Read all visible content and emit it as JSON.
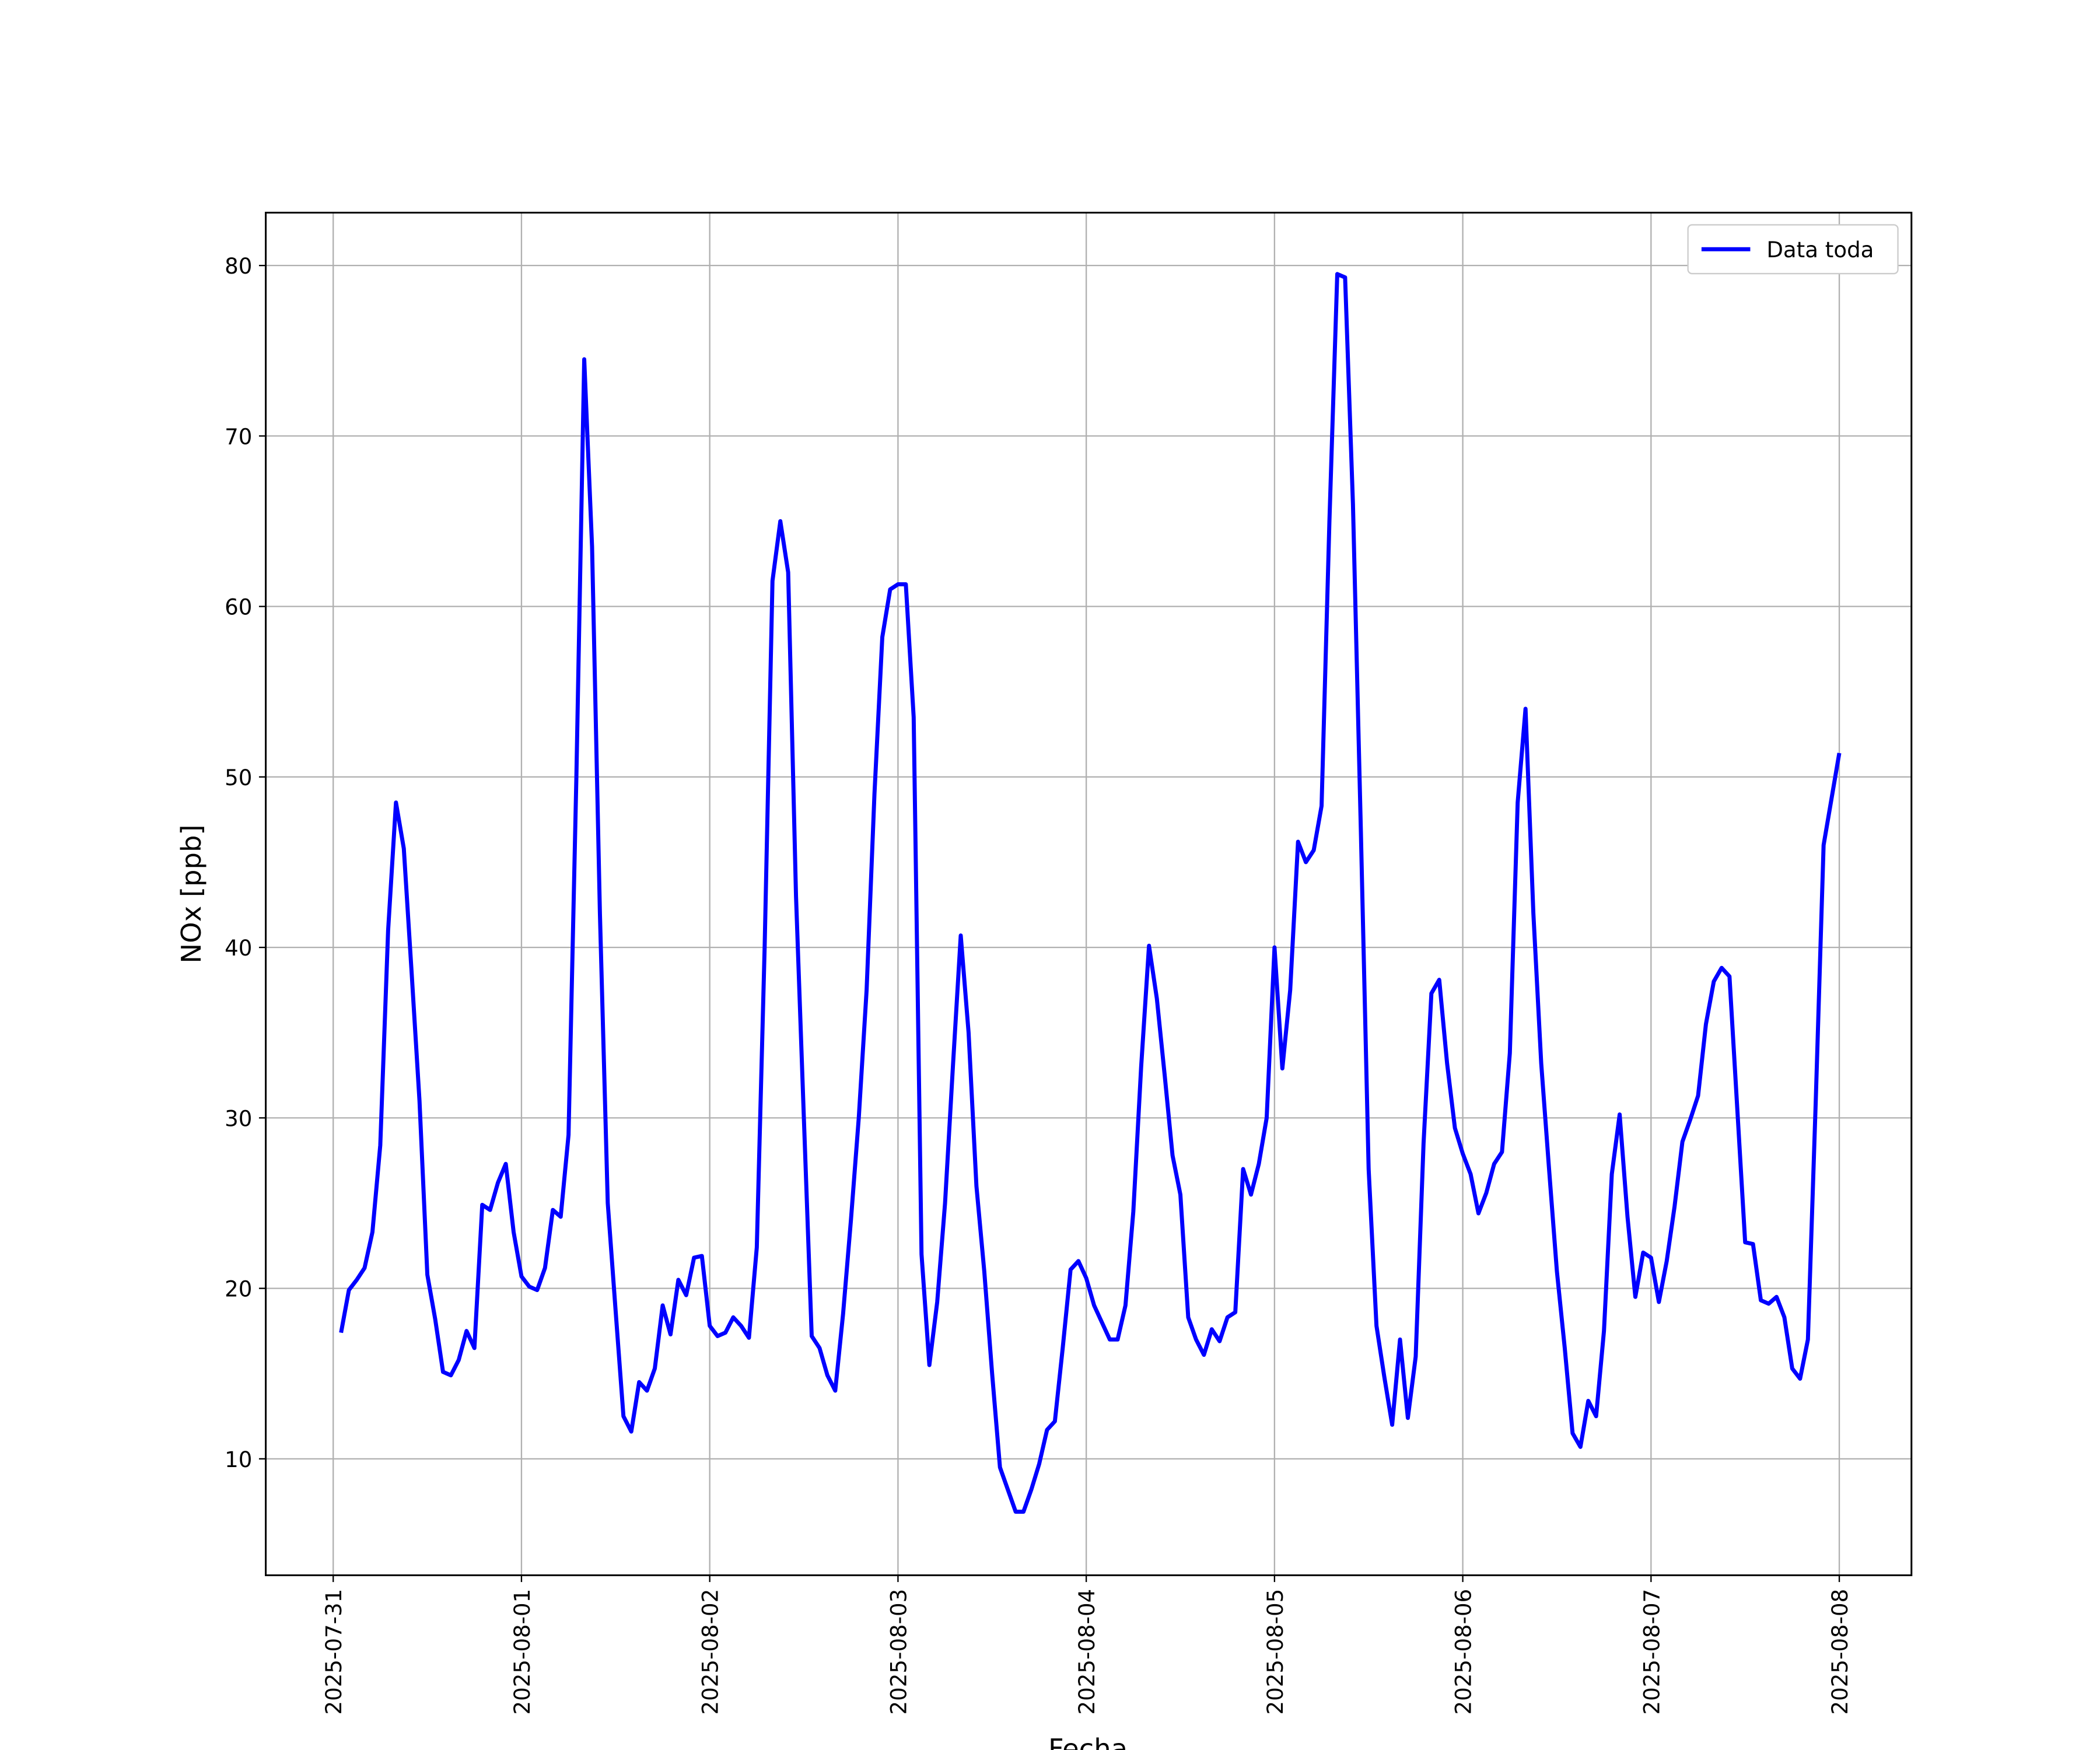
{
  "chart_data": {
    "type": "line",
    "xlabel": "Fecha",
    "ylabel": "NOx [ppb]",
    "x": [
      1,
      2,
      3,
      4,
      5,
      6,
      7,
      8,
      9,
      10,
      11,
      12,
      13,
      14,
      15,
      16,
      17,
      18,
      19,
      20,
      21,
      22,
      23,
      24,
      25,
      26,
      27,
      28,
      29,
      30,
      31,
      32,
      33,
      34,
      35,
      36,
      37,
      38,
      39,
      40,
      41,
      42,
      43,
      44,
      45,
      46,
      47,
      48,
      49,
      50,
      51,
      52,
      53,
      54,
      55,
      56,
      57,
      58,
      59,
      60,
      61,
      62,
      63,
      64,
      65,
      66,
      67,
      68,
      69,
      70,
      71,
      72,
      73,
      74,
      75,
      76,
      77,
      78,
      79,
      80,
      81,
      82,
      83,
      84,
      85,
      86,
      87,
      88,
      89,
      90,
      91,
      92,
      93,
      94,
      95,
      96,
      97,
      98,
      99,
      100,
      101,
      102,
      103,
      104,
      105,
      106,
      107,
      108,
      109,
      110,
      111,
      112,
      113,
      114,
      115,
      116,
      117,
      118,
      119,
      120,
      121,
      122,
      123,
      124,
      125,
      126,
      127,
      128,
      129,
      130,
      131,
      132,
      133,
      134,
      135,
      136,
      137,
      138,
      139,
      140,
      141,
      142,
      143,
      144,
      145,
      146,
      147,
      148,
      149,
      150,
      151,
      152,
      153,
      154,
      155,
      156,
      157,
      158,
      159,
      160,
      161,
      162,
      163,
      164,
      165,
      166,
      167,
      168,
      169,
      170,
      171,
      172,
      173,
      174,
      175,
      176,
      177,
      178,
      179,
      180,
      181,
      182,
      183,
      184,
      185,
      186,
      187,
      188,
      189,
      190,
      191,
      192
    ],
    "series": [
      {
        "name": "Data toda",
        "color": "#0000ff",
        "values": [
          17.4,
          19.9,
          20.5,
          21.2,
          23.3,
          28.4,
          41,
          48.5,
          45.8,
          38.5,
          31,
          20.8,
          18.2,
          15.1,
          14.9,
          15.8,
          17.5,
          16.5,
          24.9,
          24.6,
          26.2,
          27.3,
          23.3,
          20.7,
          20.1,
          19.9,
          21.2,
          24.6,
          24.2,
          29,
          50,
          74.5,
          63.5,
          42,
          25,
          18.7,
          12.5,
          11.6,
          14.5,
          14,
          15.3,
          19,
          17.3,
          20.5,
          19.6,
          21.8,
          21.9,
          17.8,
          17.2,
          17.4,
          18.3,
          17.8,
          17.1,
          22.4,
          40,
          61.5,
          65,
          62,
          43,
          30,
          17.2,
          16.5,
          14.9,
          14,
          18.5,
          24,
          30,
          37.5,
          49,
          58.2,
          61,
          61.3,
          61.3,
          53.5,
          22,
          15.5,
          19.2,
          25,
          33,
          40.7,
          35,
          26,
          21,
          15,
          9.5,
          8.2,
          6.9,
          6.9,
          8.2,
          9.7,
          11.7,
          12.2,
          16.5,
          21.1,
          21.6,
          20.6,
          19,
          18,
          17,
          17,
          19,
          24.5,
          33,
          40.1,
          37,
          32.5,
          27.8,
          25.5,
          18.3,
          17,
          16.1,
          17.6,
          16.9,
          18.3,
          18.6,
          27,
          25.5,
          27.3,
          30,
          40,
          32.9,
          37.5,
          46.2,
          45,
          45.7,
          48.3,
          65,
          79.5,
          79.3,
          66,
          47,
          27,
          17.8,
          14.8,
          12,
          17,
          12.4,
          16,
          28.5,
          37.3,
          38.1,
          33.2,
          29.4,
          27.9,
          26.7,
          24.4,
          25.6,
          27.3,
          28,
          33.8,
          48.5,
          54,
          42,
          33.2,
          27,
          21,
          16.5,
          11.5,
          10.7,
          13.4,
          12.5,
          17.5,
          26.7,
          30.2,
          24.2,
          19.5,
          22.1,
          21.8,
          19.2,
          21.6,
          24.8,
          28.6,
          29.9,
          31.3,
          35.5,
          38,
          38.8,
          38.3,
          30.5,
          22.7,
          22.6,
          19.3,
          19.1,
          19.5,
          18.3,
          15.3,
          14.7,
          17,
          31,
          46,
          48.7,
          51.4
        ]
      }
    ],
    "xlim": [
      -8.6,
      201.2
    ],
    "xticks": [
      {
        "value": 0,
        "label": "2025-07-31"
      },
      {
        "value": 24,
        "label": "2025-08-01"
      },
      {
        "value": 48,
        "label": "2025-08-02"
      },
      {
        "value": 72,
        "label": "2025-08-03"
      },
      {
        "value": 96,
        "label": "2025-08-04"
      },
      {
        "value": 120,
        "label": "2025-08-05"
      },
      {
        "value": 144,
        "label": "2025-08-06"
      },
      {
        "value": 168,
        "label": "2025-08-07"
      },
      {
        "value": 192,
        "label": "2025-08-08"
      }
    ],
    "ylim": [
      3.17,
      83.1
    ],
    "yticks": [
      10,
      20,
      30,
      40,
      50,
      60,
      70,
      80
    ],
    "grid": true,
    "legend": "upper-right"
  }
}
